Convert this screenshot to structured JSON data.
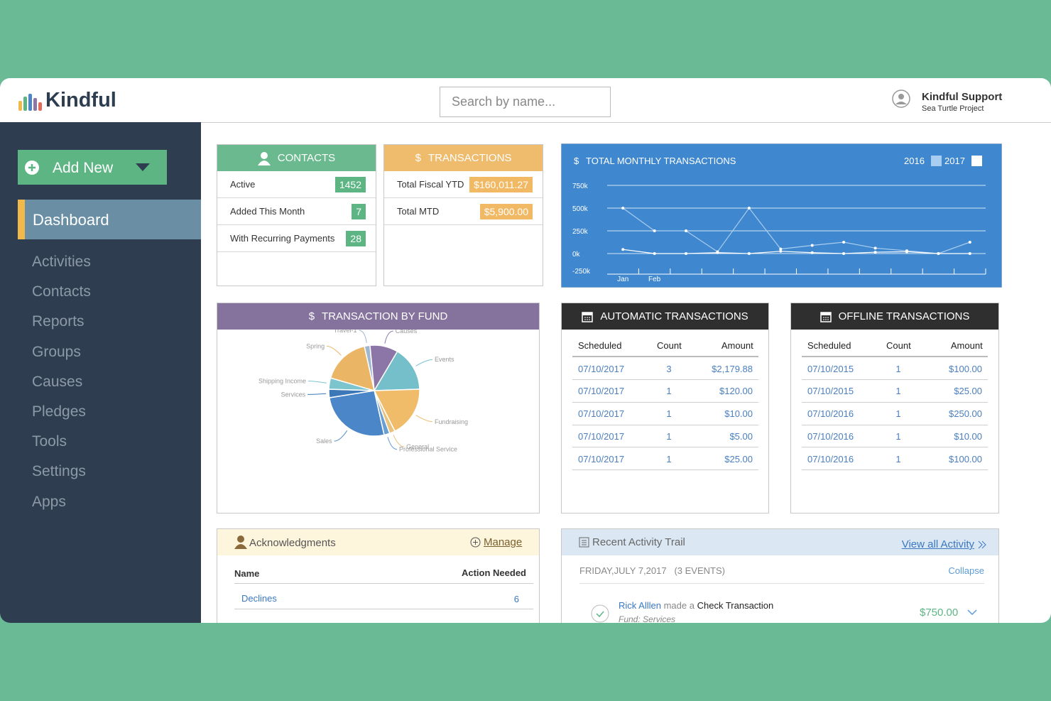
{
  "header": {
    "logo": "Kindful",
    "search_placeholder": "Search by name...",
    "user_name": "Kindful Support",
    "user_org": "Sea Turtle Project"
  },
  "sidebar": {
    "add_new": "Add New",
    "active": "Dashboard",
    "items": [
      "Activities",
      "Contacts",
      "Reports",
      "Groups",
      "Causes",
      "Pledges",
      "Tools",
      "Settings",
      "Apps"
    ]
  },
  "contacts": {
    "title": "CONTACTS",
    "rows": [
      {
        "label": "Active",
        "value": 1452
      },
      {
        "label": "Added This Month",
        "value": 7
      },
      {
        "label": "With Recurring Payments",
        "value": 28
      }
    ]
  },
  "transactions": {
    "icon": "$",
    "title": "TRANSACTIONS",
    "rows": [
      {
        "label": "Total Fiscal YTD",
        "value": "$160,011.27"
      },
      {
        "label": "Total MTD",
        "value": "$5,900.00"
      }
    ]
  },
  "chart_data": [
    {
      "type": "line",
      "icon": "$",
      "title": "TOTAL MONTHLY TRANSACTIONS",
      "categories": [
        "Jan",
        "Feb",
        null,
        null,
        null,
        null,
        null,
        null,
        null,
        null,
        null,
        null
      ],
      "series": [
        {
          "name": "2016",
          "color": "#a9cdf0",
          "values": [
            500,
            250,
            250,
            20,
            500,
            50,
            90,
            125,
            60,
            30,
            0,
            125
          ]
        },
        {
          "name": "2017",
          "color": "#ffffff",
          "values": [
            45,
            0,
            0,
            10,
            0,
            25,
            10,
            0,
            15,
            20,
            0,
            0
          ]
        }
      ],
      "ylim": [
        -250,
        750
      ],
      "yticks": [
        {
          "value": -250,
          "label": "-250k"
        },
        {
          "value": 0,
          "label": "0k"
        },
        {
          "value": 250,
          "label": "250k"
        },
        {
          "value": 500,
          "label": "500k"
        },
        {
          "value": 750,
          "label": "750k"
        }
      ],
      "grid": true
    },
    {
      "type": "pie",
      "icon": "$",
      "title": "TRANSACTION BY FUND",
      "categories": [
        "Travel-1",
        "Causes",
        "Events",
        "Fundraising",
        "General",
        "Professional Service",
        "Sales",
        "Services",
        "Shipping Income",
        "Spring"
      ],
      "values": [
        2,
        10,
        16,
        18,
        2,
        2,
        26,
        3,
        4,
        17
      ],
      "colors": [
        "#9fb6cf",
        "#8c76a8",
        "#74bfc9",
        "#f0bc6a",
        "#e8c27d",
        "#6a9fd4",
        "#4a86c8",
        "#3c78b8",
        "#7cc5cf",
        "#eab565"
      ]
    }
  ],
  "automatic_transactions": {
    "title": "AUTOMATIC TRANSACTIONS",
    "columns": [
      "Scheduled",
      "Count",
      "Amount"
    ],
    "rows": [
      [
        "07/10/2017",
        3,
        "$2,179.88"
      ],
      [
        "07/10/2017",
        1,
        "$120.00"
      ],
      [
        "07/10/2017",
        1,
        "$10.00"
      ],
      [
        "07/10/2017",
        1,
        "$5.00"
      ],
      [
        "07/10/2017",
        1,
        "$25.00"
      ]
    ]
  },
  "offline_transactions": {
    "title": "OFFLINE TRANSACTIONS",
    "columns": [
      "Scheduled",
      "Count",
      "Amount"
    ],
    "rows": [
      [
        "07/10/2015",
        1,
        "$100.00"
      ],
      [
        "07/10/2015",
        1,
        "$25.00"
      ],
      [
        "07/10/2016",
        1,
        "$250.00"
      ],
      [
        "07/10/2016",
        1,
        "$10.00"
      ],
      [
        "07/10/2016",
        1,
        "$100.00"
      ]
    ]
  },
  "acknowledgments": {
    "title": "Acknowledgments",
    "manage": "Manage",
    "columns": [
      "Name",
      "Action Needed"
    ],
    "rows": [
      [
        "Declines",
        6
      ]
    ]
  },
  "activity": {
    "title": "Recent Activity Trail",
    "view_all": "View all Activity",
    "date": "FRIDAY,JULY 7,2017",
    "count": "(3 EVENTS)",
    "collapse": "Collapse",
    "items": [
      {
        "name": "Rick Alllen",
        "verb": "made a",
        "action": "Check Transaction",
        "fund": "Fund: Services",
        "amount": "$750.00"
      }
    ]
  }
}
